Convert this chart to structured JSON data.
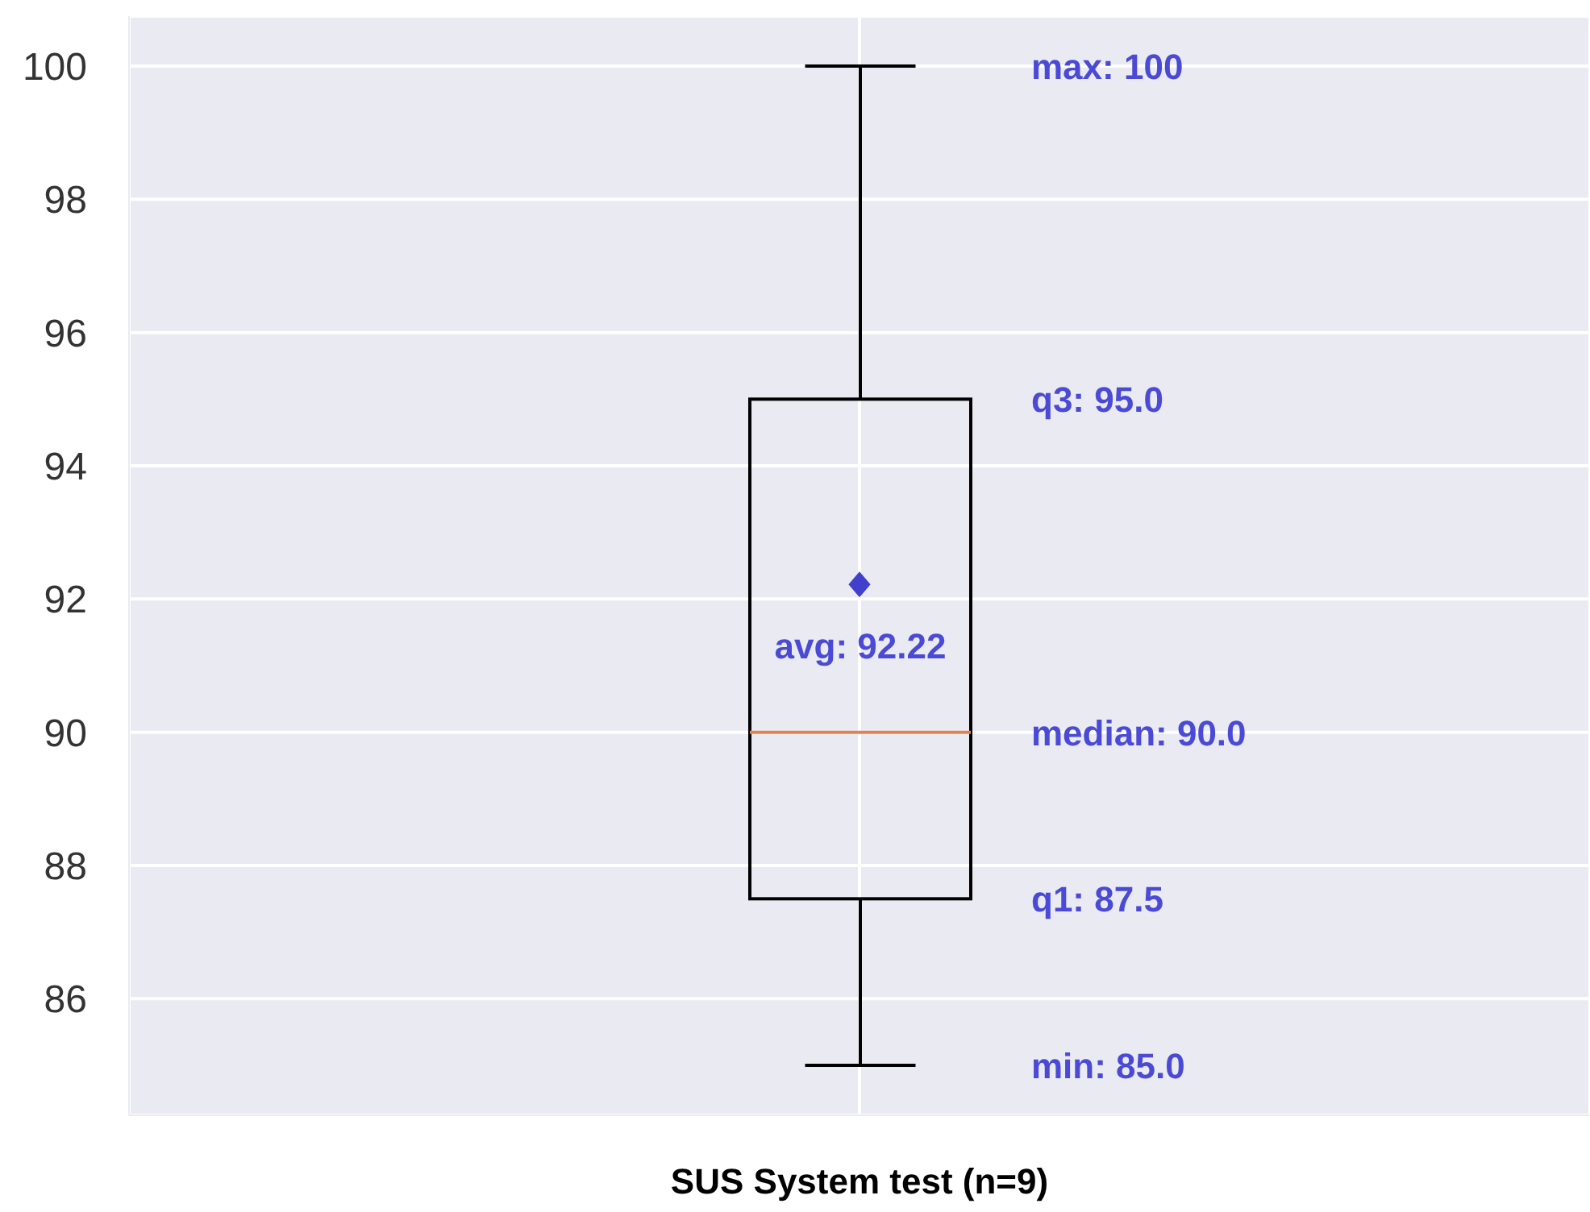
{
  "chart_data": {
    "type": "box",
    "categories": [
      "SUS System test (n=9)"
    ],
    "boxes": [
      {
        "low": 85,
        "q1": 87.5,
        "median": 90,
        "q3": 95,
        "high": 100,
        "mean": 92.22
      }
    ],
    "color": "#000000",
    "marker": "diamond",
    "grid": true,
    "ylim": [
      84.25,
      100.75
    ],
    "yticks": [
      86,
      88,
      90,
      92,
      94,
      96,
      98,
      100
    ],
    "annotations": [
      "max: 100",
      "q3: 95.0",
      "avg: 92.22",
      "median: 90.0",
      "q1: 87.5",
      "min: 85.0"
    ]
  }
}
